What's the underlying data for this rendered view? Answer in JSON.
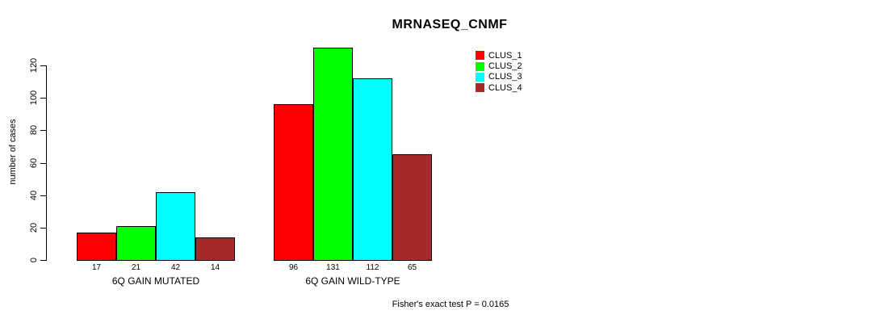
{
  "chart_data": {
    "type": "bar",
    "title": "MRNASEQ_CNMF",
    "xlabel": "",
    "ylabel": "number of cases",
    "ylim": [
      0,
      120
    ],
    "yticks": [
      0,
      20,
      40,
      60,
      80,
      100,
      120
    ],
    "grid": false,
    "legend_position": "top-right",
    "categories": [
      "6Q GAIN MUTATED",
      "6Q GAIN WILD-TYPE"
    ],
    "series": [
      {
        "name": "CLUS_1",
        "color": "#ff0000",
        "values": [
          17,
          96
        ]
      },
      {
        "name": "CLUS_2",
        "color": "#00ff00",
        "values": [
          21,
          131
        ]
      },
      {
        "name": "CLUS_3",
        "color": "#00ffff",
        "values": [
          42,
          112
        ]
      },
      {
        "name": "CLUS_4",
        "color": "#a52a2a",
        "values": [
          14,
          65
        ]
      }
    ],
    "bar_value_labels": [
      [
        17,
        21,
        42,
        14
      ],
      [
        96,
        131,
        112,
        65
      ]
    ],
    "annotation": "Fisher's exact test P = 0.0165",
    "colors": {
      "axis": "#000000",
      "bar_border": "#000000",
      "background": "#ffffff",
      "text": "#000000"
    }
  }
}
